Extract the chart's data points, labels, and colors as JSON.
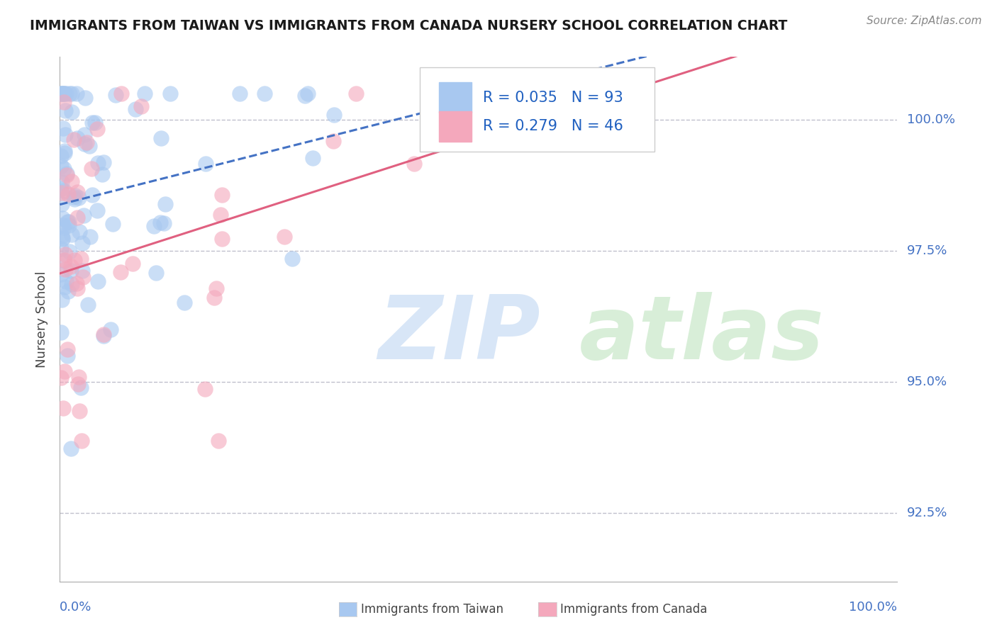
{
  "title": "IMMIGRANTS FROM TAIWAN VS IMMIGRANTS FROM CANADA NURSERY SCHOOL CORRELATION CHART",
  "source": "Source: ZipAtlas.com",
  "ylabel": "Nursery School",
  "yticks": [
    92.5,
    95.0,
    97.5,
    100.0
  ],
  "ytick_labels": [
    "92.5%",
    "95.0%",
    "97.5%",
    "100.0%"
  ],
  "xrange": [
    0.0,
    100.0
  ],
  "yrange": [
    91.2,
    101.2
  ],
  "taiwan_R": 0.035,
  "taiwan_N": 93,
  "canada_R": 0.279,
  "canada_N": 46,
  "taiwan_color": "#A8C8F0",
  "canada_color": "#F4A8BC",
  "taiwan_line_color": "#4472C4",
  "canada_line_color": "#E06080",
  "taiwan_line_style": "--",
  "canada_line_style": "-",
  "legend_R_color": "#2060C0",
  "watermark_zip_color": "#C8DCF4",
  "watermark_atlas_color": "#C8E8C8"
}
